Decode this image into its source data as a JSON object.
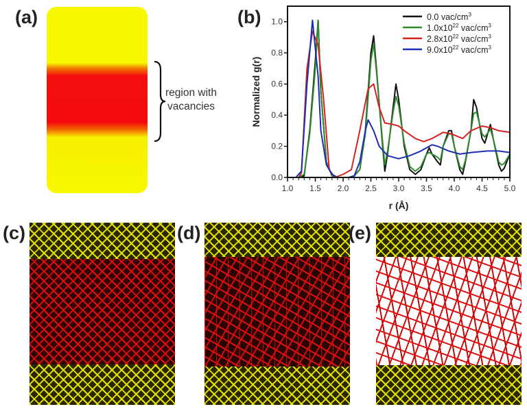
{
  "panels": {
    "a": {
      "label": "(a)",
      "annotation_line1": "region with",
      "annotation_line2": "vacancies"
    },
    "b": {
      "label": "(b)"
    },
    "c": {
      "label": "(c)"
    },
    "d": {
      "label": "(d)"
    },
    "e": {
      "label": "(e)"
    }
  },
  "colors": {
    "pristine": "#f8f800",
    "vacancy_region": "#f41010"
  },
  "chart_data": {
    "type": "line",
    "title": "",
    "xlabel": "r (Å)",
    "ylabel": "Normalized g(r)",
    "xlim": [
      1.0,
      5.0
    ],
    "ylim": [
      0.0,
      1.1
    ],
    "xticks": [
      "1.0",
      "1.5",
      "2.0",
      "2.5",
      "3.0",
      "3.5",
      "4.0",
      "4.5",
      "5.0"
    ],
    "yticks": [
      "0.0",
      "0.2",
      "0.4",
      "0.6",
      "0.8",
      "1.0"
    ],
    "grid": false,
    "legend_position": "top-right",
    "series": [
      {
        "name": "0.0 vac/cm3",
        "name_base": "0.0 vac/cm",
        "name_sup": "3",
        "color": "#111111",
        "x": [
          1.0,
          1.2,
          1.3,
          1.4,
          1.5,
          1.55,
          1.6,
          1.7,
          1.8,
          1.9,
          2.1,
          2.2,
          2.3,
          2.4,
          2.5,
          2.55,
          2.6,
          2.7,
          2.75,
          2.8,
          2.9,
          2.95,
          3.0,
          3.1,
          3.2,
          3.3,
          3.4,
          3.5,
          3.55,
          3.6,
          3.7,
          3.75,
          3.8,
          3.9,
          3.95,
          4.0,
          4.1,
          4.15,
          4.2,
          4.3,
          4.35,
          4.4,
          4.5,
          4.55,
          4.65,
          4.7,
          4.8,
          4.85,
          4.9,
          5.0
        ],
        "y": [
          0,
          0,
          0.01,
          0.3,
          0.75,
          1.01,
          0.55,
          0.1,
          0.01,
          0,
          0,
          0.01,
          0.05,
          0.3,
          0.8,
          0.91,
          0.7,
          0.25,
          0.04,
          0.15,
          0.45,
          0.6,
          0.5,
          0.2,
          0.05,
          0.02,
          0.05,
          0.15,
          0.19,
          0.15,
          0.1,
          0.08,
          0.2,
          0.3,
          0.3,
          0.2,
          0.05,
          0.02,
          0.1,
          0.3,
          0.5,
          0.45,
          0.25,
          0.22,
          0.34,
          0.25,
          0.08,
          0.04,
          0.06,
          0.15
        ]
      },
      {
        "name": "1.0x10^22 vac/cm3",
        "name_base": "1.0x10",
        "name_exp": "22",
        "name_unit": " vac/cm",
        "name_sup": "3",
        "color": "#2e8b2e",
        "x": [
          1.0,
          1.2,
          1.3,
          1.4,
          1.5,
          1.55,
          1.6,
          1.7,
          1.8,
          1.9,
          2.1,
          2.2,
          2.3,
          2.4,
          2.5,
          2.55,
          2.6,
          2.7,
          2.75,
          2.8,
          2.9,
          2.95,
          3.0,
          3.1,
          3.2,
          3.3,
          3.4,
          3.5,
          3.55,
          3.6,
          3.7,
          3.75,
          3.8,
          3.9,
          3.95,
          4.0,
          4.1,
          4.15,
          4.2,
          4.3,
          4.35,
          4.4,
          4.5,
          4.55,
          4.65,
          4.7,
          4.8,
          4.85,
          4.9,
          5.0
        ],
        "y": [
          0,
          0,
          0.02,
          0.28,
          0.7,
          1.01,
          0.55,
          0.1,
          0.01,
          0,
          0,
          0.01,
          0.05,
          0.28,
          0.75,
          0.86,
          0.68,
          0.27,
          0.08,
          0.17,
          0.42,
          0.52,
          0.46,
          0.22,
          0.07,
          0.04,
          0.07,
          0.15,
          0.16,
          0.15,
          0.13,
          0.11,
          0.2,
          0.28,
          0.28,
          0.2,
          0.07,
          0.05,
          0.11,
          0.3,
          0.41,
          0.42,
          0.28,
          0.26,
          0.31,
          0.25,
          0.1,
          0.08,
          0.09,
          0.15
        ]
      },
      {
        "name": "2.8x10^22 vac/cm3",
        "name_base": "2.8x10",
        "name_exp": "22",
        "name_unit": " vac/cm",
        "name_sup": "3",
        "color": "#d42020",
        "x": [
          1.0,
          1.2,
          1.25,
          1.35,
          1.45,
          1.55,
          1.65,
          1.75,
          1.85,
          2.0,
          2.15,
          2.3,
          2.45,
          2.55,
          2.65,
          2.75,
          2.9,
          3.0,
          3.1,
          3.3,
          3.45,
          3.6,
          3.8,
          3.95,
          4.15,
          4.3,
          4.5,
          4.65,
          4.8,
          5.0
        ],
        "y": [
          0,
          0,
          0.03,
          0.7,
          0.94,
          0.85,
          0.5,
          0.05,
          0,
          0.02,
          0.05,
          0.3,
          0.57,
          0.6,
          0.45,
          0.35,
          0.34,
          0.33,
          0.3,
          0.25,
          0.23,
          0.25,
          0.29,
          0.28,
          0.25,
          0.3,
          0.33,
          0.32,
          0.3,
          0.29
        ]
      },
      {
        "name": "9.0x10^22 vac/cm3",
        "name_base": "9.0x10",
        "name_exp": "22",
        "name_unit": " vac/cm",
        "name_sup": "3",
        "color": "#1c2fb0",
        "x": [
          1.0,
          1.15,
          1.25,
          1.35,
          1.45,
          1.55,
          1.6,
          1.7,
          1.8,
          1.9,
          2.1,
          2.2,
          2.3,
          2.4,
          2.45,
          2.55,
          2.65,
          2.8,
          3.0,
          3.2,
          3.4,
          3.6,
          3.7,
          3.9,
          4.1,
          4.3,
          4.6,
          4.8,
          5.0
        ],
        "y": [
          0,
          0,
          0.04,
          0.6,
          1.01,
          0.65,
          0.3,
          0.08,
          0.02,
          0,
          0,
          0.01,
          0.1,
          0.3,
          0.37,
          0.3,
          0.2,
          0.14,
          0.12,
          0.14,
          0.17,
          0.21,
          0.2,
          0.17,
          0.15,
          0.16,
          0.17,
          0.17,
          0.16
        ]
      }
    ]
  }
}
